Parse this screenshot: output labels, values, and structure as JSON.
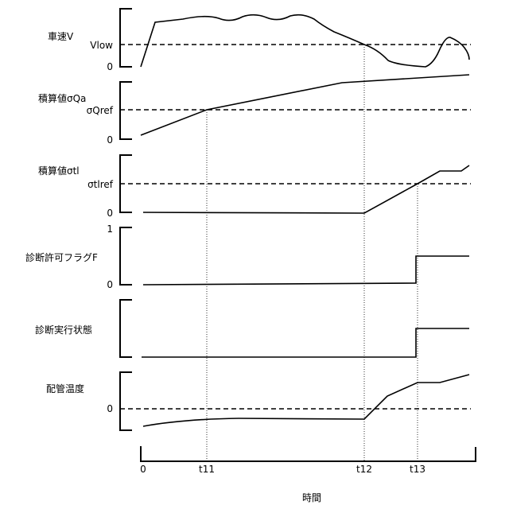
{
  "panels": [
    {
      "label": "車速V",
      "ref_label": "Vlow",
      "zero_label": "0"
    },
    {
      "label": "積算値σQa",
      "ref_label": "σQref",
      "zero_label": "0"
    },
    {
      "label": "積算値σtl",
      "ref_label": "σtlref",
      "zero_label": "0"
    },
    {
      "label": "診断許可フラグF",
      "one_label": "1",
      "zero_label": "0"
    },
    {
      "label": "診断実行状態"
    },
    {
      "label": "配管温度",
      "zero_label": "0"
    }
  ],
  "time_axis": {
    "label": "時間",
    "ticks": [
      "0",
      "t11",
      "t12",
      "t13"
    ]
  }
}
